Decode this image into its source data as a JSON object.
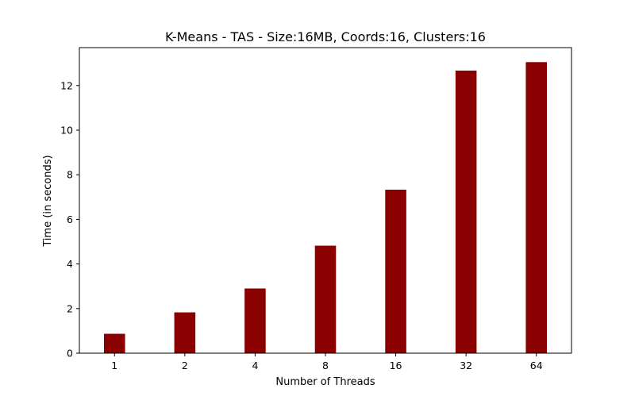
{
  "chart_data": {
    "type": "bar",
    "title": "K-Means - TAS - Size:16MB, Coords:16, Clusters:16",
    "xlabel": "Number of Threads",
    "ylabel": "Time (in seconds)",
    "categories": [
      "1",
      "2",
      "4",
      "8",
      "16",
      "32",
      "64"
    ],
    "values": [
      0.87,
      1.83,
      2.9,
      4.82,
      7.33,
      12.67,
      13.05
    ],
    "ylim": [
      0,
      13.7
    ],
    "yticks": [
      0,
      2,
      4,
      6,
      8,
      10,
      12
    ],
    "bar_color": "#8b0000",
    "grid": false,
    "legend": "none"
  }
}
